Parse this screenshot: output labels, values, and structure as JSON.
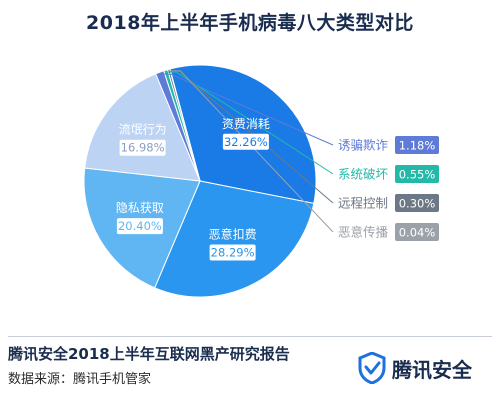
{
  "chart_data": {
    "type": "pie",
    "title": "2018年上半年手机病毒八大类型对比",
    "slices": [
      {
        "label": "资费消耗",
        "value": 32.26,
        "value_text": "32.26%",
        "color": "#1a7ae6"
      },
      {
        "label": "恶意扣费",
        "value": 28.29,
        "value_text": "28.29%",
        "color": "#2a96ef"
      },
      {
        "label": "隐私获取",
        "value": 20.4,
        "value_text": "20.40%",
        "color": "#5fb6f2"
      },
      {
        "label": "流氓行为",
        "value": 16.98,
        "value_text": "16.98%",
        "color": "#bcd3f4"
      },
      {
        "label": "诱骗欺诈",
        "value": 1.18,
        "value_text": "1.18%",
        "color": "#5f7bd8"
      },
      {
        "label": "系统破坏",
        "value": 0.55,
        "value_text": "0.55%",
        "color": "#22b9a8"
      },
      {
        "label": "远程控制",
        "value": 0.3,
        "value_text": "0.30%",
        "color": "#6c7885"
      },
      {
        "label": "恶意传播",
        "value": 0.04,
        "value_text": "0.04%",
        "color": "#9aa1a9"
      }
    ]
  },
  "footer": {
    "report_title": "腾讯安全2018上半年互联网黑产研究报告",
    "source": "数据来源：腾讯手机管家",
    "brand_name": "腾讯安全",
    "brand_icon": "shield-icon",
    "brand_color": "#1e6fe0"
  }
}
